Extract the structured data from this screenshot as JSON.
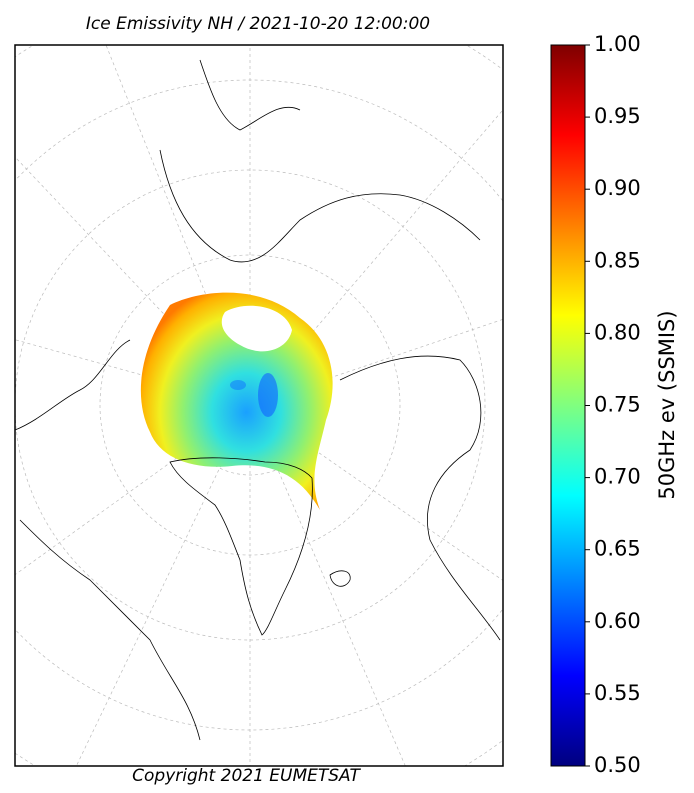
{
  "title": "Ice Emissivity NH / 2021-10-20 12:00:00",
  "copyright": "Copyright 2021 EUMETSAT",
  "colorbar": {
    "label": "50GHz ev (SSMIS)",
    "lim": [
      0.5,
      1.0
    ],
    "ticks": [
      {
        "value": 0.5,
        "label": "0.50"
      },
      0.55,
      {
        "value": 0.6,
        "label": "0.60"
      },
      0.65,
      {
        "value": 0.7,
        "label": "0.70"
      },
      0.75,
      {
        "value": 0.8,
        "label": "0.80"
      },
      0.85,
      {
        "value": 0.9,
        "label": "0.90"
      },
      0.95,
      {
        "value": 1.0,
        "label": "1.00"
      }
    ]
  }
}
